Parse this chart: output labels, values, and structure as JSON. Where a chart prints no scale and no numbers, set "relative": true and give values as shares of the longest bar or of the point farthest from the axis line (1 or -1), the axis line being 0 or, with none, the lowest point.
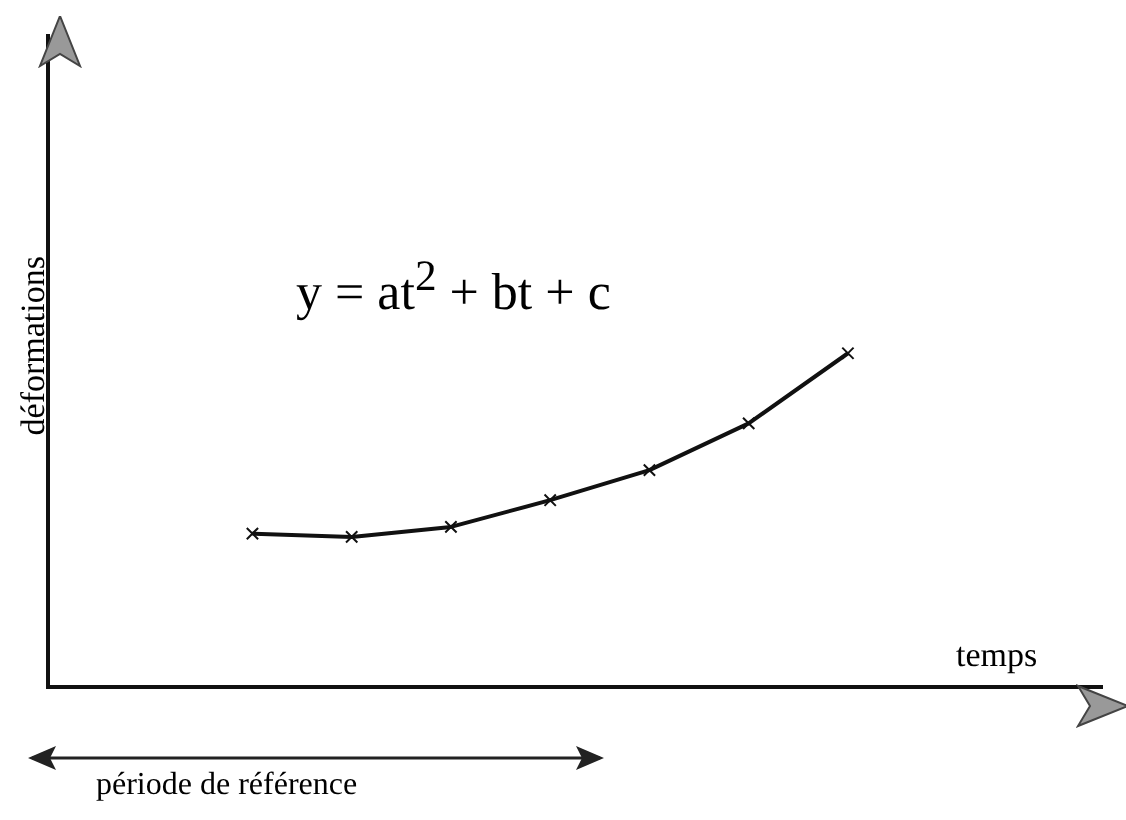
{
  "chart_data": {
    "type": "line",
    "relative": true,
    "xlabel": "temps",
    "ylabel": "déformations",
    "categories": [
      null,
      null,
      null,
      null,
      null,
      null,
      null
    ],
    "series": [
      {
        "color": "#111111",
        "values": [
          0.46,
          0.45,
          0.48,
          0.56,
          0.65,
          0.79,
          1.0
        ]
      }
    ],
    "marker": "cross",
    "annotations": [
      "y = at$^{2}$ + bt + c",
      "période de référence"
    ],
    "grid": false,
    "legend": false
  }
}
